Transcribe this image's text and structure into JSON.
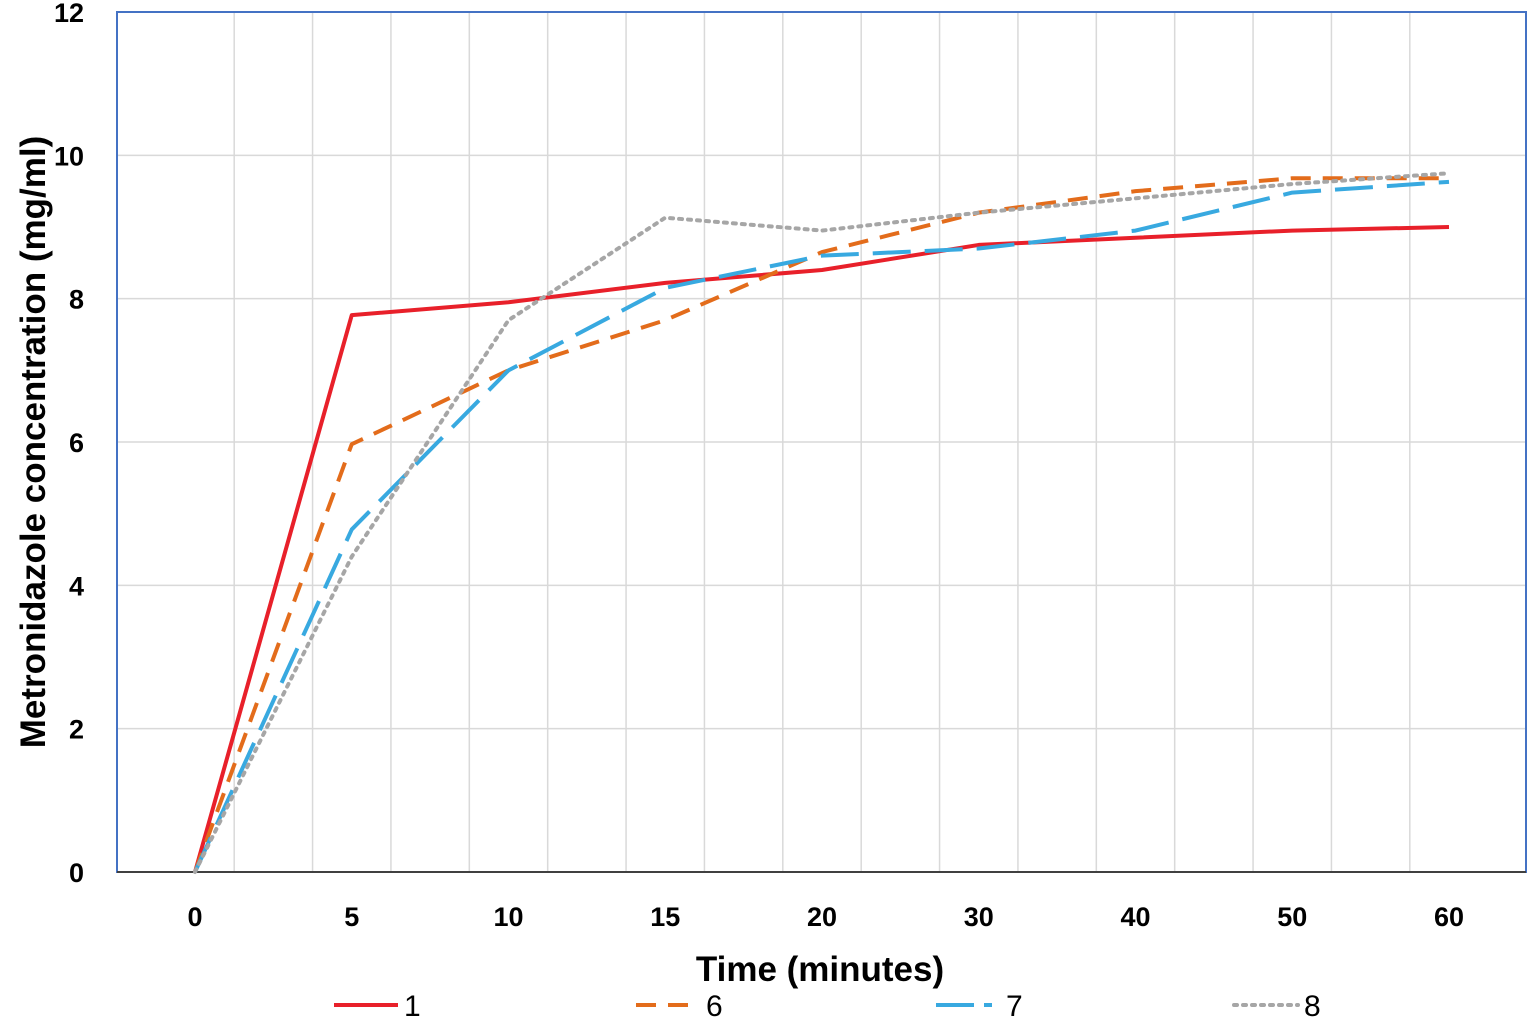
{
  "chart_data": {
    "type": "line",
    "title": "",
    "xlabel": "Time (minutes)",
    "ylabel": "Metronidazole concentration (mg/ml)",
    "categories": [
      "0",
      "5",
      "10",
      "15",
      "20",
      "30",
      "40",
      "50",
      "60"
    ],
    "ylim": [
      0,
      12
    ],
    "yticks": [
      0,
      2,
      4,
      6,
      8,
      10,
      12
    ],
    "grid": true,
    "legend_position": "bottom",
    "series": [
      {
        "name": "1",
        "color": "#e8202a",
        "style": "solid",
        "values": [
          0,
          7.77,
          7.95,
          8.22,
          8.4,
          8.75,
          8.85,
          8.95,
          9.0
        ]
      },
      {
        "name": "6",
        "color": "#e36c1b",
        "style": "dashed",
        "values": [
          0,
          5.97,
          7.0,
          7.7,
          8.65,
          9.2,
          9.5,
          9.68,
          9.68
        ]
      },
      {
        "name": "7",
        "color": "#38a9e0",
        "style": "dashdot",
        "values": [
          0,
          4.78,
          7.0,
          8.15,
          8.6,
          8.7,
          8.95,
          9.48,
          9.63
        ]
      },
      {
        "name": "8",
        "color": "#a6a6a6",
        "style": "dotted",
        "values": [
          0,
          4.4,
          7.7,
          9.13,
          8.95,
          9.2,
          9.4,
          9.6,
          9.75
        ]
      }
    ]
  }
}
